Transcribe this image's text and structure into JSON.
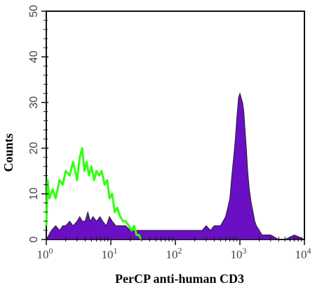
{
  "chart_data": {
    "type": "area",
    "title": "",
    "xlabel": "PerCP anti-human CD3",
    "ylabel": "Counts",
    "x_scale": "log",
    "xlim": [
      1,
      10000
    ],
    "ylim": [
      0,
      50
    ],
    "x_ticks": [
      {
        "base": "10",
        "exp": "0"
      },
      {
        "base": "10",
        "exp": "1"
      },
      {
        "base": "10",
        "exp": "2"
      },
      {
        "base": "10",
        "exp": "3"
      },
      {
        "base": "10",
        "exp": "4"
      }
    ],
    "y_ticks": [
      "0",
      "10",
      "20",
      "30",
      "40",
      "50"
    ],
    "series": [
      {
        "style": "line",
        "color": "#33ff11",
        "x": [
          1.0,
          1.05,
          1.12,
          1.25,
          1.4,
          1.6,
          1.8,
          2.0,
          2.3,
          2.6,
          3.0,
          3.3,
          3.6,
          3.9,
          4.2,
          4.6,
          5.0,
          5.5,
          6.0,
          6.6,
          7.2,
          8.0,
          8.8,
          9.5,
          10.5,
          11.5,
          12.5,
          14.0,
          15.5,
          17.0,
          19.0,
          21.0,
          23.0,
          25.0,
          27.0,
          30.0
        ],
        "y": [
          3,
          13,
          9,
          11,
          9,
          13,
          12,
          15,
          14,
          17,
          13,
          18,
          20,
          15,
          17,
          14,
          16,
          13,
          15,
          14,
          15,
          12,
          13,
          9,
          10,
          6,
          7,
          5,
          4,
          4,
          3,
          2,
          3,
          1,
          1,
          0
        ]
      },
      {
        "style": "filled",
        "color": "#6a0fc4",
        "x": [
          1.0,
          1.2,
          1.4,
          1.6,
          1.8,
          2.0,
          2.3,
          2.6,
          3.0,
          3.3,
          3.6,
          4.0,
          4.4,
          4.8,
          5.3,
          6.0,
          6.8,
          7.5,
          8.5,
          9.5,
          10.5,
          12.0,
          14.0,
          17.0,
          20.0,
          25.0,
          30.0,
          35.0,
          40.0,
          50.0,
          60.0,
          70.0,
          85.0,
          100.0,
          120.0,
          150.0,
          180.0,
          220.0,
          260.0,
          300.0,
          350.0,
          400.0,
          450.0,
          500.0,
          550.0,
          600.0,
          650.0,
          700.0,
          750.0,
          800.0,
          850.0,
          900.0,
          950.0,
          1000.0,
          1050.0,
          1100.0,
          1150.0,
          1200.0,
          1260.0,
          1320.0,
          1400.0,
          1500.0,
          1600.0,
          1700.0,
          1800.0,
          2000.0,
          2200.0,
          2500.0,
          3000.0,
          4000.0,
          5000.0,
          7000.0,
          10000.0
        ],
        "y": [
          0,
          2,
          3,
          2,
          3,
          3,
          4,
          3,
          4,
          5,
          4,
          4,
          6,
          4,
          5,
          4,
          5,
          4,
          3,
          5,
          4,
          3,
          3,
          3,
          2,
          2,
          2,
          2,
          2,
          2,
          2,
          2,
          2,
          2,
          2,
          2,
          2,
          2,
          2,
          3,
          2,
          3,
          3,
          3,
          4,
          5,
          7,
          9,
          14,
          18,
          22,
          27,
          31,
          32,
          31,
          30,
          28,
          24,
          20,
          15,
          11,
          8,
          6,
          4,
          3,
          2,
          1,
          1,
          1,
          0,
          0,
          1,
          0
        ]
      }
    ]
  }
}
